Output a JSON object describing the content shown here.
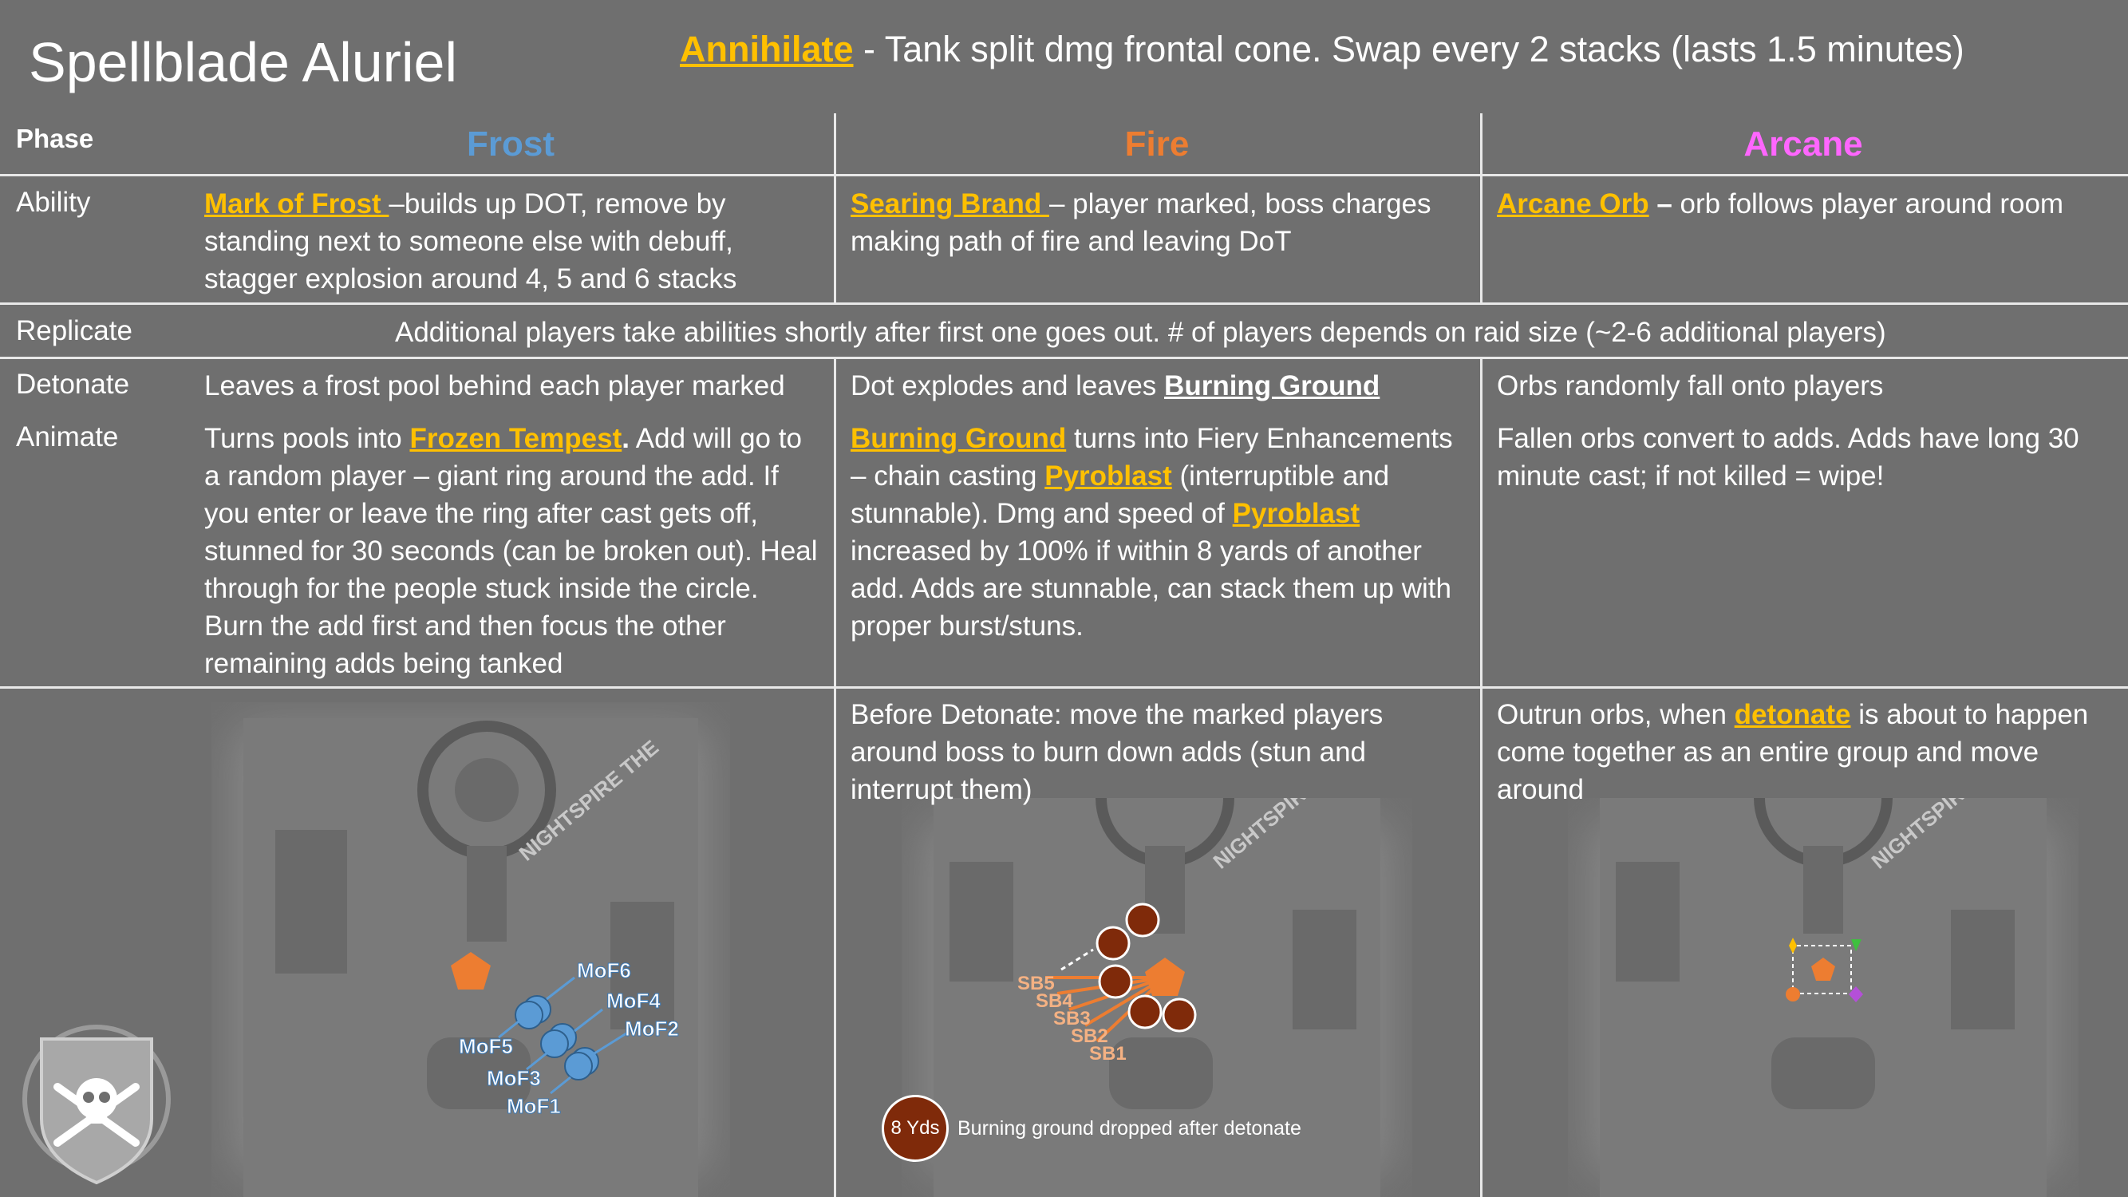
{
  "header": {
    "title": "Spellblade Aluriel",
    "annihilate_label": "Annihilate",
    "annihilate_text": " - Tank split dmg frontal cone.   Swap every 2 stacks (lasts 1.5 minutes)"
  },
  "columns": {
    "phase": "Phase",
    "frost": "Frost",
    "fire": "Fire",
    "arcane": "Arcane"
  },
  "colors": {
    "frost": "#5b9bd5",
    "fire": "#ed7d31",
    "arcane": "#ff66ff",
    "highlight": "#ffc000",
    "ember": "#7f2a0a"
  },
  "rows": {
    "ability": {
      "label": "Ability",
      "frost_link": "Mark of Frost ",
      "frost_text": "–builds up DOT, remove by standing next to someone else with debuff, stagger explosion around 4, 5 and 6 stacks",
      "fire_link": "Searing Brand ",
      "fire_text": "– player marked, boss charges making path of fire and leaving DoT",
      "arcane_link": "Arcane Orb",
      "arcane_dash": " –",
      "arcane_text": " orb follows player around room"
    },
    "replicate": {
      "label": "Replicate",
      "text": "Additional players take abilities shortly after first one goes out.  # of players depends on raid size (~2-6 additional players)"
    },
    "detonate": {
      "label": "Detonate",
      "frost_text": "Leaves a frost pool behind each player marked",
      "fire_text": "Dot explodes and leaves ",
      "fire_link": "Burning Ground",
      "arcane_text": "Orbs randomly fall onto players"
    },
    "animate": {
      "label": "Animate",
      "frost_pre": "Turns pools into ",
      "frost_link": "Frozen Tempest",
      "frost_dot": ".",
      "frost_post": "  Add will go to a random player – giant ring around the add.  If you enter or leave the ring after cast gets off, stunned for 30 seconds (can be broken out).  Heal through for the people stuck inside the circle.  Burn the add first and then focus the other remaining adds being tanked",
      "fire_link1": "Burning Ground",
      "fire_text1": " turns into Fiery Enhancements – chain casting ",
      "fire_link2": "Pyroblast",
      "fire_text2": " (interruptible and stunnable).  Dmg and speed of ",
      "fire_link3": "Pyroblast",
      "fire_text3": " increased by 100% if within 8 yards of another add.  Adds are stunnable, can stack them up with proper burst/stuns.",
      "arcane_text": "Fallen orbs convert to adds.  Adds have long 30 minute cast; if not killed = wipe!"
    },
    "strategy": {
      "fire_text": "Before Detonate: move the marked players around boss to burn down adds (stun and interrupt them)",
      "arcane_pre": "Outrun orbs, when ",
      "arcane_link": "detonate",
      "arcane_post": " is about to happen come together as an entire group and move around"
    }
  },
  "maps": {
    "area_label": "NIGHTSPIRE THE",
    "frost_markers": [
      "MoF6",
      "MoF4",
      "MoF2",
      "MoF5",
      "MoF3",
      "MoF1"
    ],
    "fire_markers": [
      "SB5",
      "SB4",
      "SB3",
      "SB2",
      "SB1"
    ],
    "legend_badge": "8 Yds",
    "legend_text": "Burning ground dropped after detonate"
  },
  "logo": {
    "icon": "skull-crossbones-shield-icon"
  }
}
